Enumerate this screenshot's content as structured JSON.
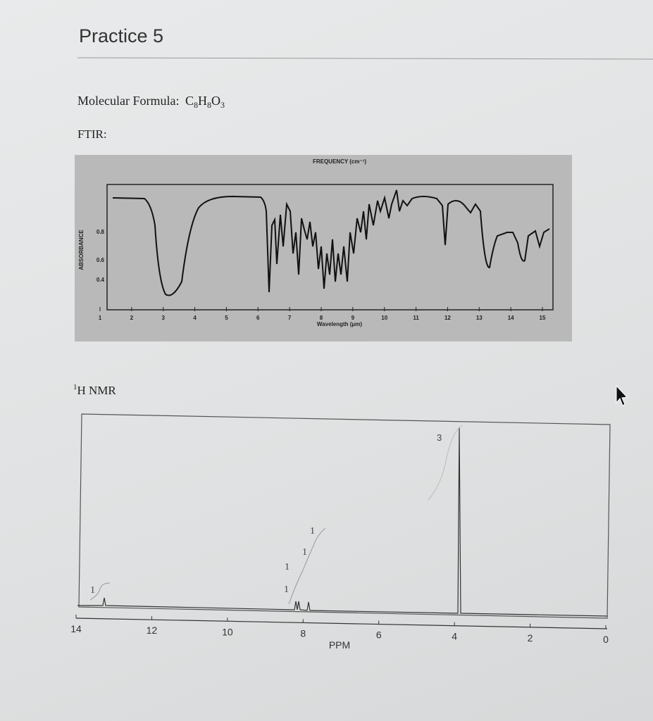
{
  "header": {
    "title": "Practice 5"
  },
  "formula": {
    "label": "Molecular Formula:",
    "parts": [
      {
        "symbol": "C",
        "count": 8
      },
      {
        "symbol": "H",
        "count": 8
      },
      {
        "symbol": "O",
        "count": 3
      }
    ]
  },
  "ftir": {
    "label": "FTIR:",
    "top_axis_title": "FREQUENCY (cm⁻¹)",
    "bottom_axis_title": "Wavelength (μm)",
    "y_axis_title": "ABSORBANCE",
    "y_tick_labels": [
      "0.8",
      "0.6",
      "0.4"
    ],
    "x_tick_labels": [
      1,
      2,
      3,
      4,
      5,
      6,
      7,
      8,
      9,
      10,
      11,
      12,
      13,
      14,
      15
    ]
  },
  "nmr": {
    "label": {
      "superscript": "1",
      "text": "H NMR"
    },
    "axis_title": "PPM",
    "x_tick_labels": [
      14,
      12,
      10,
      8,
      6,
      4,
      2,
      0
    ],
    "integrations": [
      "1",
      "1",
      "1",
      "1",
      "1",
      "3"
    ]
  }
}
